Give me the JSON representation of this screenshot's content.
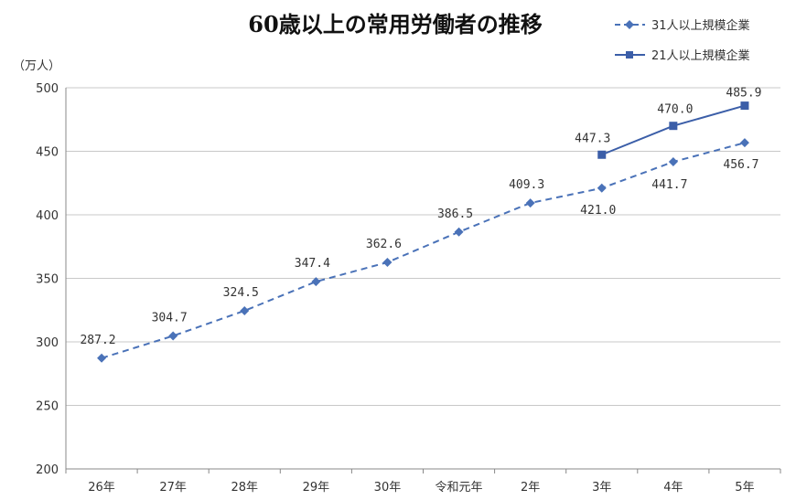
{
  "chart_data": {
    "type": "line",
    "title": "60歳以上の常用労働者の推移",
    "ylabel": "（万人）",
    "xlabel": "",
    "ylim": [
      200,
      500
    ],
    "yticks": [
      200,
      250,
      300,
      350,
      400,
      450,
      500
    ],
    "grid": true,
    "legend_position": "top-right",
    "categories": [
      "26年",
      "27年",
      "28年",
      "29年",
      "30年",
      "令和元年",
      "2年",
      "3年",
      "4年",
      "5年"
    ],
    "series": [
      {
        "name": "31人以上規模企業",
        "style": "dashed",
        "marker": "diamond",
        "color": "#4a72b8",
        "values": [
          287.2,
          304.7,
          324.5,
          347.4,
          362.6,
          386.5,
          409.3,
          421.0,
          441.7,
          456.7
        ],
        "labels": [
          "287.2",
          "304.7",
          "324.5",
          "347.4",
          "362.6",
          "386.5",
          "409.3",
          "421.0",
          "441.7",
          "456.7"
        ]
      },
      {
        "name": "21人以上規模企業",
        "style": "solid",
        "marker": "square",
        "color": "#3b5ea8",
        "values": [
          null,
          null,
          null,
          null,
          null,
          null,
          null,
          447.3,
          470.0,
          485.9
        ],
        "labels": [
          null,
          null,
          null,
          null,
          null,
          null,
          null,
          "447.3",
          "470.0",
          "485.9"
        ]
      }
    ]
  }
}
